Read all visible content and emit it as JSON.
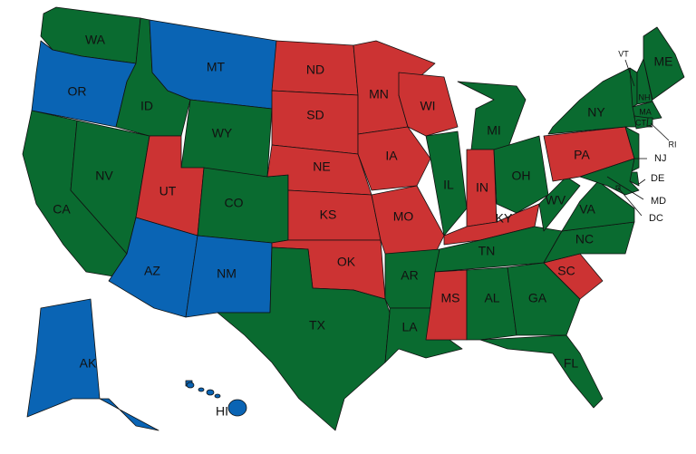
{
  "colors": {
    "green": "#0a6b30",
    "red": "#cc3333",
    "blue": "#0a64b4"
  },
  "states": [
    {
      "abbr": "WA",
      "color": "green"
    },
    {
      "abbr": "OR",
      "color": "blue"
    },
    {
      "abbr": "CA",
      "color": "green"
    },
    {
      "abbr": "NV",
      "color": "green"
    },
    {
      "abbr": "ID",
      "color": "green"
    },
    {
      "abbr": "MT",
      "color": "blue"
    },
    {
      "abbr": "WY",
      "color": "green"
    },
    {
      "abbr": "UT",
      "color": "red"
    },
    {
      "abbr": "CO",
      "color": "green"
    },
    {
      "abbr": "AZ",
      "color": "blue"
    },
    {
      "abbr": "NM",
      "color": "blue"
    },
    {
      "abbr": "ND",
      "color": "red"
    },
    {
      "abbr": "SD",
      "color": "red"
    },
    {
      "abbr": "NE",
      "color": "red"
    },
    {
      "abbr": "KS",
      "color": "red"
    },
    {
      "abbr": "OK",
      "color": "red"
    },
    {
      "abbr": "TX",
      "color": "green"
    },
    {
      "abbr": "MN",
      "color": "red"
    },
    {
      "abbr": "IA",
      "color": "red"
    },
    {
      "abbr": "MO",
      "color": "red"
    },
    {
      "abbr": "AR",
      "color": "green"
    },
    {
      "abbr": "LA",
      "color": "green"
    },
    {
      "abbr": "WI",
      "color": "red"
    },
    {
      "abbr": "IL",
      "color": "green"
    },
    {
      "abbr": "MI",
      "color": "green"
    },
    {
      "abbr": "IN",
      "color": "red"
    },
    {
      "abbr": "OH",
      "color": "green"
    },
    {
      "abbr": "KY",
      "color": "red"
    },
    {
      "abbr": "TN",
      "color": "green"
    },
    {
      "abbr": "MS",
      "color": "red"
    },
    {
      "abbr": "AL",
      "color": "green"
    },
    {
      "abbr": "GA",
      "color": "green"
    },
    {
      "abbr": "FL",
      "color": "green"
    },
    {
      "abbr": "SC",
      "color": "red"
    },
    {
      "abbr": "NC",
      "color": "green"
    },
    {
      "abbr": "VA",
      "color": "green"
    },
    {
      "abbr": "WV",
      "color": "green"
    },
    {
      "abbr": "PA",
      "color": "red"
    },
    {
      "abbr": "NY",
      "color": "green"
    },
    {
      "abbr": "NJ",
      "color": "green"
    },
    {
      "abbr": "DE",
      "color": "green"
    },
    {
      "abbr": "MD",
      "color": "green"
    },
    {
      "abbr": "DC",
      "color": "green"
    },
    {
      "abbr": "VT",
      "color": "green"
    },
    {
      "abbr": "NH",
      "color": "green"
    },
    {
      "abbr": "ME",
      "color": "green"
    },
    {
      "abbr": "MA",
      "color": "green"
    },
    {
      "abbr": "CT",
      "color": "green"
    },
    {
      "abbr": "RI",
      "color": "green"
    },
    {
      "abbr": "AK",
      "color": "blue"
    },
    {
      "abbr": "HI",
      "color": "blue"
    }
  ]
}
